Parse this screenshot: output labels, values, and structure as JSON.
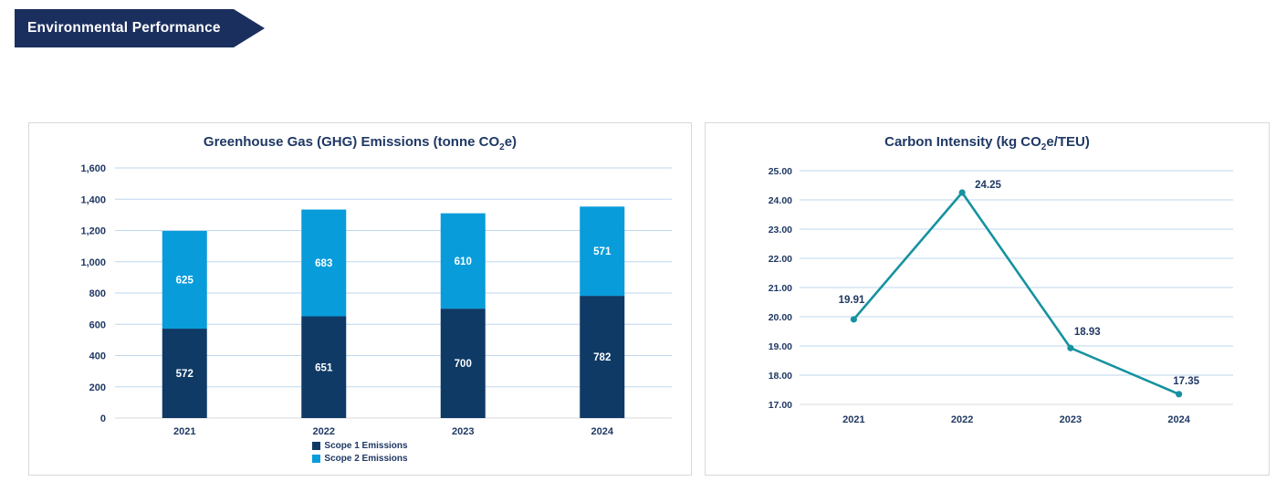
{
  "banner": {
    "label": "Environmental Performance",
    "color": "#1B2F5E"
  },
  "colors": {
    "navy_text": "#1F3864",
    "scope1_bar": "#0F3A66",
    "scope2_bar": "#089CDB",
    "teal_line": "#1692A0",
    "gridline": "#BDD7EE",
    "axis_line": "#D9D9D9",
    "panel_border": "#D9D9D9",
    "bar_label": "#FFFFFF"
  },
  "chart_data": [
    {
      "type": "bar",
      "stacked": true,
      "title_parts": {
        "pre": "Greenhouse Gas (GHG) Emissions (tonne CO",
        "sub": "2",
        "post": "e)"
      },
      "categories": [
        "2021",
        "2022",
        "2023",
        "2024"
      ],
      "series": [
        {
          "name": "Scope 1 Emissions",
          "color": "#0F3A66",
          "values": [
            572,
            651,
            700,
            782
          ]
        },
        {
          "name": "Scope 2 Emissions",
          "color": "#089CDB",
          "values": [
            625,
            683,
            610,
            571
          ]
        }
      ],
      "totals": [
        1197,
        1334,
        1310,
        1353
      ],
      "xlabel": "",
      "ylabel": "",
      "ylim": [
        0,
        1600
      ],
      "ytick_step": 200,
      "ytick_labels": [
        "0",
        "200",
        "400",
        "600",
        "800",
        "1,000",
        "1,200",
        "1,400",
        "1,600"
      ],
      "grid": true,
      "legend_position": "bottom"
    },
    {
      "type": "line",
      "title_parts": {
        "pre": "Carbon Intensity (kg CO",
        "sub": "2",
        "post": "e/TEU)"
      },
      "categories": [
        "2021",
        "2022",
        "2023",
        "2024"
      ],
      "series": [
        {
          "name": "Carbon Intensity",
          "color": "#1692A0",
          "values": [
            19.91,
            24.25,
            18.93,
            17.35
          ]
        }
      ],
      "point_labels": [
        "19.91",
        "24.25",
        "18.93",
        "17.35"
      ],
      "xlabel": "",
      "ylabel": "",
      "ylim": [
        17,
        25
      ],
      "ytick_step": 1,
      "ytick_labels": [
        "17.00",
        "18.00",
        "19.00",
        "20.00",
        "21.00",
        "22.00",
        "23.00",
        "24.00",
        "25.00"
      ],
      "grid": true,
      "legend_position": "none"
    }
  ]
}
